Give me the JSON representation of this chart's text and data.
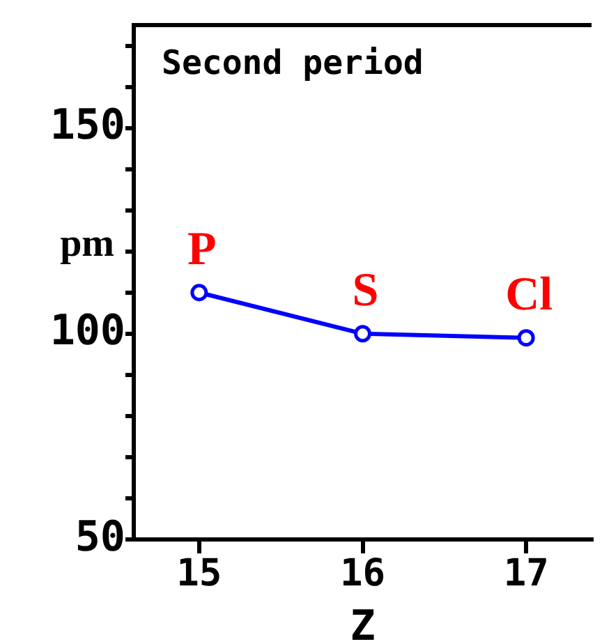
{
  "chart_data": {
    "type": "line",
    "title": "Second period",
    "xlabel": "Z",
    "ylabel": "pm",
    "x": [
      15,
      16,
      17
    ],
    "series": [
      {
        "color": "#0000ff",
        "values": [
          110,
          100,
          99
        ]
      }
    ],
    "xlim": [
      14.6,
      17.4
    ],
    "xticks": [
      15,
      16,
      17
    ],
    "ylim": [
      50,
      175
    ],
    "yticks": [
      50,
      {
        "value": 60,
        "label": null
      },
      {
        "value": 70,
        "label": null
      },
      {
        "value": 80,
        "label": null
      },
      {
        "value": 90,
        "label": null
      },
      100,
      {
        "value": 110,
        "label": null
      },
      {
        "value": 120,
        "label": null
      },
      {
        "value": 130,
        "label": null
      },
      {
        "value": 140,
        "label": null
      },
      150,
      {
        "value": 160,
        "label": null
      },
      {
        "value": 170,
        "label": null
      }
    ],
    "annotations": [
      {
        "text": "P",
        "x": 15,
        "y": 110
      },
      {
        "text": "S",
        "x": 16,
        "y": 100
      },
      {
        "text": "Cl",
        "x": 17,
        "y": 99
      }
    ],
    "grid": false,
    "legend": false,
    "marker": "circle",
    "line_style": "solid"
  }
}
